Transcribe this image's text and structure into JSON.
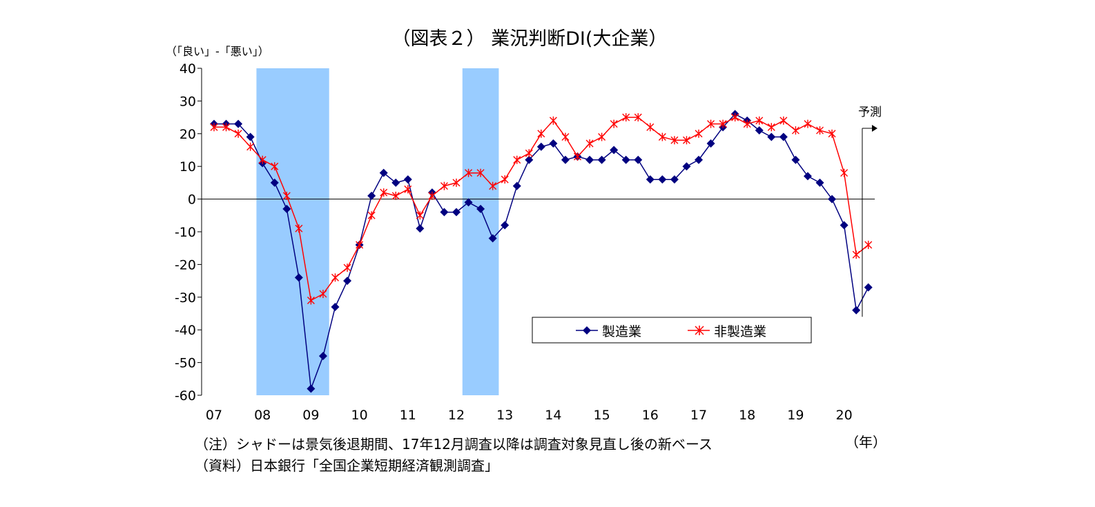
{
  "chart_data": {
    "type": "line",
    "title": "（図表２） 業況判断DI(大企業）",
    "ylabel": "（「良い」-「悪い」）",
    "xlabel_unit": "（年）",
    "ylim": [
      -60,
      40
    ],
    "yticks": [
      40,
      30,
      20,
      10,
      0,
      -10,
      -20,
      -30,
      -40,
      -50,
      -60
    ],
    "xtick_labels": [
      "07",
      "08",
      "09",
      "10",
      "11",
      "12",
      "13",
      "14",
      "15",
      "16",
      "17",
      "18",
      "19",
      "20"
    ],
    "shaded_periods": [
      [
        "2008Q1",
        "2009Q2"
      ],
      [
        "2012Q2",
        "2012Q4"
      ]
    ],
    "x": [
      "2007Q1",
      "2007Q2",
      "2007Q3",
      "2007Q4",
      "2008Q1",
      "2008Q2",
      "2008Q3",
      "2008Q4",
      "2009Q1",
      "2009Q2",
      "2009Q3",
      "2009Q4",
      "2010Q1",
      "2010Q2",
      "2010Q3",
      "2010Q4",
      "2011Q1",
      "2011Q2",
      "2011Q3",
      "2011Q4",
      "2012Q1",
      "2012Q2",
      "2012Q3",
      "2012Q4",
      "2013Q1",
      "2013Q2",
      "2013Q3",
      "2013Q4",
      "2014Q1",
      "2014Q2",
      "2014Q3",
      "2014Q4",
      "2015Q1",
      "2015Q2",
      "2015Q3",
      "2015Q4",
      "2016Q1",
      "2016Q2",
      "2016Q3",
      "2016Q4",
      "2017Q1",
      "2017Q2",
      "2017Q3",
      "2017Q4",
      "2018Q1",
      "2018Q2",
      "2018Q3",
      "2018Q4",
      "2019Q1",
      "2019Q2",
      "2019Q3",
      "2019Q4",
      "2020Q1",
      "2020Q2",
      "2020Q3"
    ],
    "series": [
      {
        "name": "製造業",
        "color": "#000080",
        "marker": "diamond",
        "values": [
          23,
          23,
          23,
          19,
          11,
          5,
          -3,
          -24,
          -58,
          -48,
          -33,
          -25,
          -14,
          1,
          8,
          5,
          6,
          -9,
          2,
          -4,
          -4,
          -1,
          -3,
          -12,
          -8,
          4,
          12,
          16,
          17,
          12,
          13,
          12,
          12,
          15,
          12,
          12,
          6,
          6,
          6,
          10,
          12,
          17,
          22,
          26,
          24,
          21,
          19,
          19,
          12,
          7,
          5,
          0,
          -8,
          -34,
          -27
        ]
      },
      {
        "name": "非製造業",
        "color": "#ff0000",
        "marker": "star",
        "values": [
          22,
          22,
          20,
          16,
          12,
          10,
          1,
          -9,
          -31,
          -29,
          -24,
          -21,
          -14,
          -5,
          2,
          1,
          3,
          -5,
          1,
          4,
          5,
          8,
          8,
          4,
          6,
          12,
          14,
          20,
          24,
          19,
          13,
          17,
          19,
          23,
          25,
          25,
          22,
          19,
          18,
          18,
          20,
          23,
          23,
          25,
          23,
          24,
          22,
          24,
          21,
          23,
          21,
          20,
          8,
          -17,
          -14
        ]
      }
    ],
    "forecast_label": "予測",
    "forecast_start": "2020Q3",
    "legend_position": "bottom-right, inside plot"
  },
  "notes": {
    "note1": "（注）シャドーは景気後退期間、17年12月調査以降は調査対象見直し後の新ベース",
    "note2": "（資料）日本銀行「全国企業短期経済観測調査」"
  },
  "colors": {
    "shade": "#99ccff",
    "manufacturing": "#000080",
    "non_manufacturing": "#ff0000"
  }
}
